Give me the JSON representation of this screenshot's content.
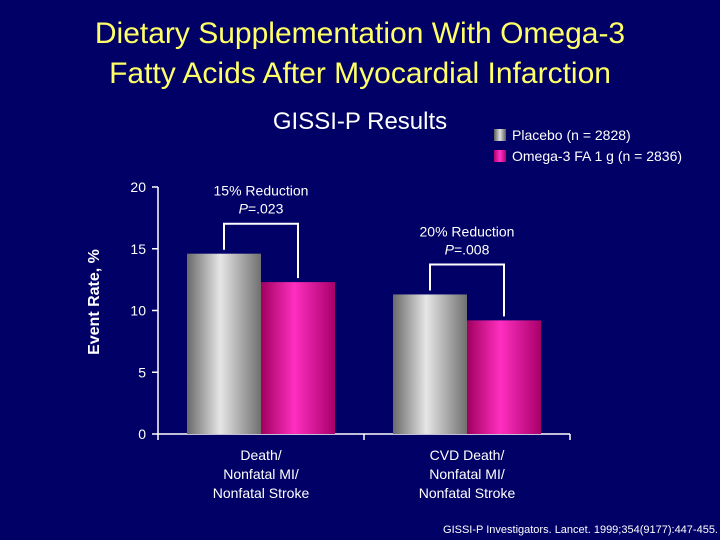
{
  "title_line1": "Dietary Supplementation With Omega-3",
  "title_line2": "Fatty Acids After Myocardial Infarction",
  "subtitle": "GISSI-P Results",
  "citation": "GISSI-P Investigators. Lancet. 1999;354(9177):447-455.",
  "colors": {
    "background": "#000066",
    "title": "#ffff66",
    "placebo": "#a9a9a9",
    "omega3": "#e8198b"
  },
  "chart_data": {
    "type": "bar",
    "title": "GISSI-P Results",
    "ylabel": "Event Rate, %",
    "xlabel": "",
    "ylim": [
      0,
      20
    ],
    "yticks": [
      0,
      5,
      10,
      15,
      20
    ],
    "categories": [
      "Death/ Nonfatal MI/ Nonfatal Stroke",
      "CVD Death/ Nonfatal MI/ Nonfatal Stroke"
    ],
    "category_lines": [
      [
        "Death/",
        "Nonfatal MI/",
        "Nonfatal Stroke"
      ],
      [
        "CVD Death/",
        "Nonfatal MI/",
        "Nonfatal Stroke"
      ]
    ],
    "series": [
      {
        "name": "Placebo (n = 2828)",
        "values": [
          14.6,
          11.3
        ]
      },
      {
        "name": "Omega-3 FA 1 g (n = 2836)",
        "values": [
          12.3,
          9.2
        ]
      }
    ],
    "annotations": [
      {
        "line1": "15% Reduction",
        "p_label": "P",
        "p_value": "=.023"
      },
      {
        "line1": "20% Reduction",
        "p_label": "P",
        "p_value": "=.008"
      }
    ],
    "legend_position": "top-right"
  }
}
